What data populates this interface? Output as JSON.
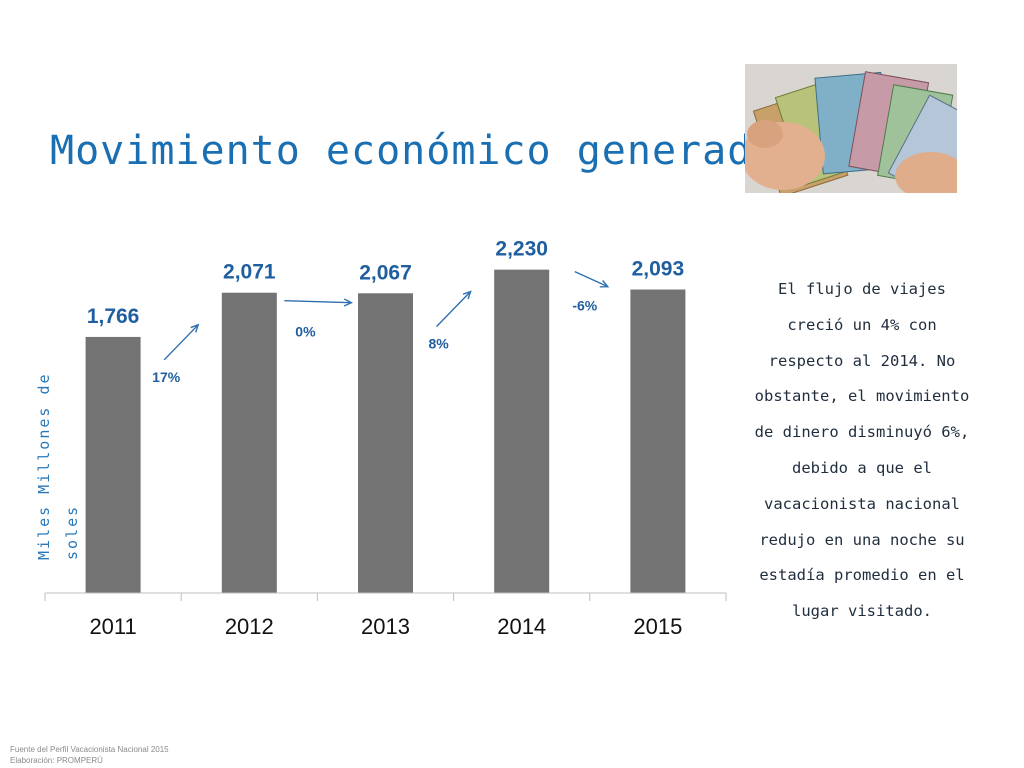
{
  "title": "Movimiento económico generado",
  "colors": {
    "title": "#1a6fb3",
    "bar": "#737373",
    "pct_label": "#1f5fa0",
    "arrow": "#2e6fb0"
  },
  "chart_data": {
    "type": "bar",
    "categories": [
      "2011",
      "2012",
      "2013",
      "2014",
      "2015"
    ],
    "values": [
      1766,
      2071,
      2067,
      2230,
      2093
    ],
    "value_labels": [
      "1,766",
      "2,071",
      "2,067",
      "2,230",
      "2,093"
    ],
    "growth": [
      {
        "label": "17%",
        "direction": "up"
      },
      {
        "label": "0%",
        "direction": "flat"
      },
      {
        "label": "8%",
        "direction": "up"
      },
      {
        "label": "-6%",
        "direction": "down"
      }
    ],
    "ylabel": "Miles Millones de soles",
    "ylim": [
      0,
      2400
    ],
    "grid": false
  },
  "side_note": "El flujo de viajes creció un 4% con respecto al 2014. No obstante, el movimiento de dinero disminuyó 6%, debido a que el vacacionista nacional redujo en una noche su estadía promedio en el lugar visitado.",
  "source": {
    "line1": "Fuente del Perfil Vacacionista Nacional 2015",
    "line2": "Elaboración: PROMPERÚ"
  },
  "image": {
    "icon": "money-banknotes-photo"
  }
}
